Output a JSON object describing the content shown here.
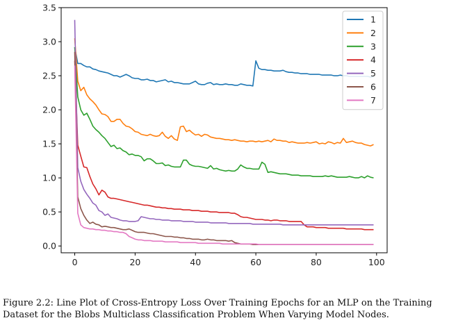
{
  "caption": "Figure 2.2: Line Plot of Cross-Entropy Loss Over Training Epochs for an MLP on the Training Dataset for the Blobs Multiclass Classification Problem When Varying Model Nodes.",
  "chart_data": {
    "type": "line",
    "title": "",
    "xlabel": "",
    "ylabel": "",
    "xlim": [
      -4.5,
      103.5
    ],
    "ylim": [
      -0.1,
      3.5
    ],
    "x_ticks": [
      0,
      20,
      40,
      60,
      80,
      100
    ],
    "y_ticks": [
      0.0,
      0.5,
      1.0,
      1.5,
      2.0,
      2.5,
      3.0,
      3.5
    ],
    "y_tick_labels": [
      "0.0",
      "0.5",
      "1.0",
      "1.5",
      "2.0",
      "2.5",
      "3.0",
      "3.5"
    ],
    "grid": false,
    "legend_position": "top-right",
    "x": [
      0,
      1,
      2,
      3,
      4,
      5,
      6,
      7,
      8,
      9,
      10,
      11,
      12,
      13,
      14,
      15,
      16,
      17,
      18,
      19,
      20,
      21,
      22,
      23,
      24,
      25,
      26,
      27,
      28,
      29,
      30,
      31,
      32,
      33,
      34,
      35,
      36,
      37,
      38,
      39,
      40,
      41,
      42,
      43,
      44,
      45,
      46,
      47,
      48,
      49,
      50,
      51,
      52,
      53,
      54,
      55,
      56,
      57,
      58,
      59,
      60,
      61,
      62,
      63,
      64,
      65,
      66,
      67,
      68,
      69,
      70,
      71,
      72,
      73,
      74,
      75,
      76,
      77,
      78,
      79,
      80,
      81,
      82,
      83,
      84,
      85,
      86,
      87,
      88,
      89,
      90,
      91,
      92,
      93,
      94,
      95,
      96,
      97,
      98,
      99
    ],
    "series": [
      {
        "name": "1",
        "color": "#1f77b4",
        "values": [
          2.92,
          2.68,
          2.68,
          2.65,
          2.63,
          2.63,
          2.6,
          2.59,
          2.57,
          2.56,
          2.55,
          2.54,
          2.52,
          2.5,
          2.5,
          2.48,
          2.5,
          2.52,
          2.5,
          2.47,
          2.46,
          2.46,
          2.44,
          2.44,
          2.45,
          2.43,
          2.43,
          2.41,
          2.42,
          2.43,
          2.44,
          2.41,
          2.42,
          2.4,
          2.4,
          2.39,
          2.38,
          2.38,
          2.38,
          2.4,
          2.42,
          2.38,
          2.37,
          2.37,
          2.39,
          2.4,
          2.37,
          2.38,
          2.37,
          2.37,
          2.38,
          2.37,
          2.37,
          2.36,
          2.36,
          2.38,
          2.37,
          2.36,
          2.36,
          2.35,
          2.72,
          2.61,
          2.59,
          2.59,
          2.58,
          2.58,
          2.57,
          2.57,
          2.57,
          2.58,
          2.56,
          2.55,
          2.55,
          2.54,
          2.54,
          2.53,
          2.53,
          2.53,
          2.52,
          2.52,
          2.52,
          2.52,
          2.51,
          2.51,
          2.51,
          2.51,
          2.5,
          2.5,
          2.51,
          2.5,
          2.5,
          2.49,
          2.49,
          2.49,
          2.49,
          2.49,
          2.49,
          2.49,
          2.48,
          2.48
        ]
      },
      {
        "name": "2",
        "color": "#ff7f0e",
        "values": [
          3.05,
          2.42,
          2.28,
          2.33,
          2.22,
          2.16,
          2.12,
          2.07,
          2.0,
          1.94,
          1.93,
          1.9,
          1.83,
          1.83,
          1.86,
          1.86,
          1.8,
          1.76,
          1.75,
          1.72,
          1.68,
          1.67,
          1.64,
          1.63,
          1.62,
          1.64,
          1.62,
          1.61,
          1.62,
          1.67,
          1.61,
          1.58,
          1.62,
          1.57,
          1.55,
          1.75,
          1.76,
          1.68,
          1.7,
          1.66,
          1.63,
          1.64,
          1.61,
          1.64,
          1.63,
          1.6,
          1.59,
          1.58,
          1.58,
          1.57,
          1.56,
          1.56,
          1.55,
          1.56,
          1.55,
          1.54,
          1.54,
          1.53,
          1.54,
          1.54,
          1.53,
          1.54,
          1.53,
          1.54,
          1.55,
          1.53,
          1.57,
          1.55,
          1.55,
          1.54,
          1.54,
          1.52,
          1.53,
          1.52,
          1.51,
          1.51,
          1.51,
          1.52,
          1.51,
          1.52,
          1.53,
          1.5,
          1.51,
          1.5,
          1.53,
          1.52,
          1.5,
          1.52,
          1.51,
          1.58,
          1.52,
          1.53,
          1.54,
          1.52,
          1.51,
          1.51,
          1.49,
          1.48,
          1.47,
          1.49
        ]
      },
      {
        "name": "3",
        "color": "#2ca02c",
        "values": [
          2.92,
          2.19,
          2.0,
          1.92,
          1.95,
          1.86,
          1.76,
          1.71,
          1.67,
          1.62,
          1.58,
          1.52,
          1.46,
          1.48,
          1.43,
          1.44,
          1.4,
          1.38,
          1.34,
          1.35,
          1.33,
          1.33,
          1.31,
          1.25,
          1.28,
          1.28,
          1.25,
          1.21,
          1.21,
          1.22,
          1.18,
          1.19,
          1.17,
          1.16,
          1.16,
          1.16,
          1.26,
          1.26,
          1.2,
          1.18,
          1.17,
          1.17,
          1.16,
          1.15,
          1.14,
          1.18,
          1.13,
          1.14,
          1.12,
          1.11,
          1.1,
          1.11,
          1.1,
          1.1,
          1.13,
          1.19,
          1.16,
          1.14,
          1.14,
          1.13,
          1.13,
          1.13,
          1.23,
          1.2,
          1.08,
          1.09,
          1.08,
          1.07,
          1.06,
          1.06,
          1.06,
          1.05,
          1.04,
          1.04,
          1.04,
          1.03,
          1.03,
          1.03,
          1.03,
          1.02,
          1.02,
          1.02,
          1.02,
          1.03,
          1.02,
          1.03,
          1.02,
          1.01,
          1.01,
          1.01,
          1.01,
          1.02,
          1.01,
          1.0,
          1.0,
          1.02,
          1.0,
          1.03,
          1.01,
          1.0
        ]
      },
      {
        "name": "4",
        "color": "#d62728",
        "values": [
          2.72,
          1.48,
          1.32,
          1.16,
          1.15,
          1.02,
          0.91,
          0.84,
          0.75,
          0.82,
          0.79,
          0.72,
          0.7,
          0.7,
          0.69,
          0.68,
          0.67,
          0.66,
          0.65,
          0.64,
          0.63,
          0.62,
          0.61,
          0.6,
          0.6,
          0.59,
          0.58,
          0.57,
          0.57,
          0.56,
          0.56,
          0.55,
          0.55,
          0.54,
          0.54,
          0.54,
          0.53,
          0.53,
          0.53,
          0.52,
          0.52,
          0.52,
          0.51,
          0.51,
          0.51,
          0.5,
          0.5,
          0.5,
          0.49,
          0.49,
          0.49,
          0.49,
          0.48,
          0.48,
          0.46,
          0.43,
          0.42,
          0.42,
          0.41,
          0.4,
          0.39,
          0.39,
          0.39,
          0.38,
          0.38,
          0.37,
          0.38,
          0.38,
          0.37,
          0.37,
          0.37,
          0.36,
          0.36,
          0.36,
          0.36,
          0.36,
          0.31,
          0.28,
          0.28,
          0.28,
          0.27,
          0.27,
          0.27,
          0.27,
          0.26,
          0.26,
          0.26,
          0.26,
          0.26,
          0.26,
          0.25,
          0.25,
          0.25,
          0.25,
          0.25,
          0.25,
          0.24,
          0.24,
          0.24,
          0.24
        ]
      },
      {
        "name": "5",
        "color": "#9467bd",
        "values": [
          3.32,
          1.15,
          0.95,
          0.83,
          0.76,
          0.7,
          0.63,
          0.6,
          0.52,
          0.5,
          0.45,
          0.47,
          0.42,
          0.41,
          0.4,
          0.38,
          0.37,
          0.37,
          0.36,
          0.36,
          0.36,
          0.37,
          0.43,
          0.42,
          0.41,
          0.4,
          0.4,
          0.39,
          0.39,
          0.38,
          0.38,
          0.38,
          0.37,
          0.37,
          0.37,
          0.37,
          0.36,
          0.36,
          0.36,
          0.36,
          0.35,
          0.35,
          0.35,
          0.35,
          0.35,
          0.34,
          0.34,
          0.34,
          0.34,
          0.34,
          0.34,
          0.33,
          0.33,
          0.33,
          0.33,
          0.33,
          0.33,
          0.33,
          0.33,
          0.32,
          0.32,
          0.32,
          0.32,
          0.32,
          0.32,
          0.32,
          0.32,
          0.32,
          0.32,
          0.31,
          0.31,
          0.31,
          0.31,
          0.31,
          0.31,
          0.31,
          0.31,
          0.31,
          0.31,
          0.31,
          0.31,
          0.31,
          0.31,
          0.31,
          0.31,
          0.31,
          0.31,
          0.31,
          0.31,
          0.31,
          0.31,
          0.31,
          0.31,
          0.31,
          0.31,
          0.31,
          0.31,
          0.31,
          0.31,
          0.31
        ]
      },
      {
        "name": "6",
        "color": "#8c564b",
        "values": [
          2.85,
          0.72,
          0.55,
          0.45,
          0.38,
          0.33,
          0.35,
          0.32,
          0.31,
          0.28,
          0.29,
          0.28,
          0.27,
          0.27,
          0.26,
          0.25,
          0.24,
          0.24,
          0.25,
          0.23,
          0.21,
          0.2,
          0.2,
          0.2,
          0.19,
          0.18,
          0.18,
          0.17,
          0.16,
          0.15,
          0.14,
          0.14,
          0.14,
          0.13,
          0.13,
          0.12,
          0.12,
          0.11,
          0.11,
          0.1,
          0.1,
          0.1,
          0.09,
          0.09,
          0.1,
          0.09,
          0.09,
          0.08,
          0.08,
          0.08,
          0.08,
          0.07,
          0.08,
          0.05,
          0.04,
          0.03,
          0.03,
          0.03,
          0.03,
          0.02,
          0.02,
          0.02,
          0.02,
          0.02,
          0.02,
          0.02,
          0.02,
          0.02,
          0.02,
          0.02,
          0.02,
          0.02,
          0.02,
          0.02,
          0.02,
          0.02,
          0.02,
          0.02,
          0.02,
          0.02,
          0.02,
          0.02,
          0.02,
          0.02,
          0.02,
          0.02,
          0.02,
          0.02,
          0.02,
          0.02,
          0.02,
          0.02,
          0.02,
          0.02,
          0.02,
          0.02,
          0.02,
          0.02,
          0.02,
          0.02
        ]
      },
      {
        "name": "7",
        "color": "#e377c2",
        "values": [
          2.65,
          0.48,
          0.31,
          0.27,
          0.26,
          0.25,
          0.25,
          0.24,
          0.24,
          0.23,
          0.23,
          0.22,
          0.22,
          0.21,
          0.21,
          0.2,
          0.2,
          0.18,
          0.14,
          0.12,
          0.1,
          0.09,
          0.09,
          0.08,
          0.08,
          0.08,
          0.07,
          0.07,
          0.07,
          0.07,
          0.06,
          0.06,
          0.06,
          0.06,
          0.06,
          0.05,
          0.05,
          0.05,
          0.05,
          0.05,
          0.05,
          0.04,
          0.04,
          0.04,
          0.04,
          0.04,
          0.04,
          0.04,
          0.04,
          0.03,
          0.03,
          0.03,
          0.03,
          0.03,
          0.03,
          0.03,
          0.03,
          0.03,
          0.03,
          0.03,
          0.03,
          0.02,
          0.02,
          0.02,
          0.02,
          0.02,
          0.02,
          0.02,
          0.02,
          0.02,
          0.02,
          0.02,
          0.02,
          0.02,
          0.02,
          0.02,
          0.02,
          0.02,
          0.02,
          0.02,
          0.02,
          0.02,
          0.02,
          0.02,
          0.02,
          0.02,
          0.02,
          0.02,
          0.02,
          0.02,
          0.02,
          0.02,
          0.02,
          0.02,
          0.02,
          0.02,
          0.02,
          0.02,
          0.02,
          0.02
        ]
      }
    ]
  }
}
